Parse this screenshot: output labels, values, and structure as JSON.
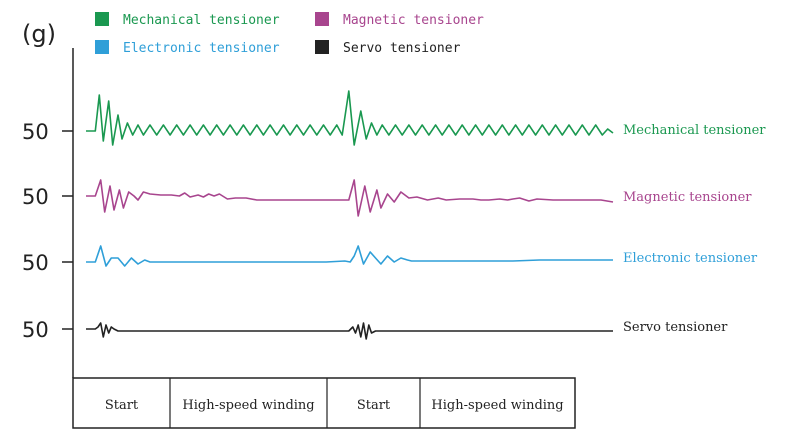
{
  "chart_data": {
    "type": "line",
    "title": "",
    "y_unit_label": "(g)",
    "x_phases": [
      "Start",
      "High-speed winding",
      "Start",
      "High-speed winding"
    ],
    "legend": [
      {
        "label": "Mechanical tensioner",
        "color": "#1a9850"
      },
      {
        "label": "Magnetic tensioner",
        "color": "#a8458e"
      },
      {
        "label": "Electronic tensioner",
        "color": "#2f9fd8"
      },
      {
        "label": "Servo tensioner",
        "color": "#222222"
      }
    ],
    "series": [
      {
        "name": "Mechanical tensioner",
        "color": "#1a9850",
        "baseline": 50,
        "points": [
          [
            0,
            50
          ],
          [
            0.35,
            50
          ],
          [
            0.5,
            68
          ],
          [
            0.65,
            45
          ],
          [
            0.85,
            65
          ],
          [
            1,
            43
          ],
          [
            1.2,
            58
          ],
          [
            1.35,
            46
          ],
          [
            1.55,
            54
          ],
          [
            1.75,
            48
          ],
          [
            1.95,
            53
          ],
          [
            2.15,
            48
          ],
          [
            2.4,
            53
          ],
          [
            2.65,
            48
          ],
          [
            2.9,
            53
          ],
          [
            3.15,
            48
          ],
          [
            3.4,
            53
          ],
          [
            3.65,
            48
          ],
          [
            3.9,
            53
          ],
          [
            4.15,
            48
          ],
          [
            4.4,
            53
          ],
          [
            4.65,
            48
          ],
          [
            4.9,
            53
          ],
          [
            5.15,
            48
          ],
          [
            5.4,
            53
          ],
          [
            5.65,
            48
          ],
          [
            5.9,
            53
          ],
          [
            6.15,
            48
          ],
          [
            6.4,
            53
          ],
          [
            6.65,
            48
          ],
          [
            6.9,
            53
          ],
          [
            7.15,
            48
          ],
          [
            7.4,
            53
          ],
          [
            7.65,
            48
          ],
          [
            7.9,
            53
          ],
          [
            8.15,
            48
          ],
          [
            8.4,
            53
          ],
          [
            8.65,
            48
          ],
          [
            8.9,
            53
          ],
          [
            9.15,
            48
          ],
          [
            9.4,
            53
          ],
          [
            9.6,
            48
          ],
          [
            9.85,
            70
          ],
          [
            10.05,
            43
          ],
          [
            10.3,
            60
          ],
          [
            10.5,
            46
          ],
          [
            10.7,
            54
          ],
          [
            10.9,
            48
          ],
          [
            11.1,
            53
          ],
          [
            11.35,
            48
          ],
          [
            11.6,
            53
          ],
          [
            11.85,
            48
          ],
          [
            12.1,
            53
          ],
          [
            12.35,
            48
          ],
          [
            12.6,
            53
          ],
          [
            12.85,
            48
          ],
          [
            13.1,
            53
          ],
          [
            13.35,
            48
          ],
          [
            13.6,
            53
          ],
          [
            13.85,
            48
          ],
          [
            14.1,
            53
          ],
          [
            14.35,
            48
          ],
          [
            14.6,
            53
          ],
          [
            14.85,
            48
          ],
          [
            15.1,
            53
          ],
          [
            15.35,
            48
          ],
          [
            15.6,
            53
          ],
          [
            15.85,
            48
          ],
          [
            16.1,
            53
          ],
          [
            16.35,
            48
          ],
          [
            16.6,
            53
          ],
          [
            16.85,
            48
          ],
          [
            17.1,
            53
          ],
          [
            17.35,
            48
          ],
          [
            17.6,
            53
          ],
          [
            17.85,
            48
          ],
          [
            18.1,
            53
          ],
          [
            18.35,
            48
          ],
          [
            18.6,
            53
          ],
          [
            18.85,
            48
          ],
          [
            19.1,
            53
          ],
          [
            19.35,
            48
          ],
          [
            19.55,
            51
          ],
          [
            19.75,
            49
          ]
        ]
      },
      {
        "name": "Magnetic tensioner",
        "color": "#a8458e",
        "baseline": 50,
        "points": [
          [
            0,
            50
          ],
          [
            0.35,
            50
          ],
          [
            0.55,
            58
          ],
          [
            0.7,
            42
          ],
          [
            0.9,
            55
          ],
          [
            1.05,
            43
          ],
          [
            1.25,
            53
          ],
          [
            1.4,
            44
          ],
          [
            1.6,
            52
          ],
          [
            1.8,
            50
          ],
          [
            1.95,
            48
          ],
          [
            2.15,
            52
          ],
          [
            2.4,
            51
          ],
          [
            2.8,
            50.5
          ],
          [
            3.2,
            50.5
          ],
          [
            3.5,
            50
          ],
          [
            3.7,
            51.5
          ],
          [
            3.9,
            49.5
          ],
          [
            4.2,
            50.5
          ],
          [
            4.4,
            49.5
          ],
          [
            4.6,
            51
          ],
          [
            4.8,
            50
          ],
          [
            5,
            51
          ],
          [
            5.3,
            48.5
          ],
          [
            5.6,
            49
          ],
          [
            6,
            49
          ],
          [
            6.4,
            48
          ],
          [
            7,
            48
          ],
          [
            8,
            48
          ],
          [
            9.5,
            48
          ],
          [
            9.85,
            48
          ],
          [
            10.05,
            58
          ],
          [
            10.2,
            40
          ],
          [
            10.45,
            55
          ],
          [
            10.65,
            42
          ],
          [
            10.9,
            53
          ],
          [
            11.05,
            44
          ],
          [
            11.3,
            51
          ],
          [
            11.55,
            47
          ],
          [
            11.8,
            52
          ],
          [
            12.1,
            49
          ],
          [
            12.4,
            49.5
          ],
          [
            12.8,
            48
          ],
          [
            13.2,
            49
          ],
          [
            13.5,
            48
          ],
          [
            14,
            48.5
          ],
          [
            14.5,
            48.5
          ],
          [
            14.8,
            48
          ],
          [
            15.1,
            48
          ],
          [
            15.5,
            48.5
          ],
          [
            15.8,
            48
          ],
          [
            16,
            48.5
          ],
          [
            16.25,
            49
          ],
          [
            16.6,
            47.5
          ],
          [
            16.9,
            48.5
          ],
          [
            17.5,
            48
          ],
          [
            18.5,
            48
          ],
          [
            19.3,
            48
          ],
          [
            19.75,
            47
          ]
        ]
      },
      {
        "name": "Electronic tensioner",
        "color": "#2f9fd8",
        "baseline": 50,
        "points": [
          [
            0,
            50
          ],
          [
            0.35,
            50
          ],
          [
            0.55,
            58
          ],
          [
            0.75,
            48
          ],
          [
            0.95,
            52
          ],
          [
            1.2,
            52
          ],
          [
            1.45,
            48
          ],
          [
            1.7,
            52
          ],
          [
            1.95,
            49
          ],
          [
            2.2,
            51
          ],
          [
            2.4,
            50
          ],
          [
            2.55,
            50
          ],
          [
            3,
            50
          ],
          [
            4,
            50
          ],
          [
            5,
            50
          ],
          [
            6,
            50
          ],
          [
            7,
            50
          ],
          [
            8,
            50
          ],
          [
            9,
            50
          ],
          [
            9.7,
            50.5
          ],
          [
            9.9,
            50
          ],
          [
            10.05,
            53
          ],
          [
            10.2,
            58
          ],
          [
            10.4,
            49
          ],
          [
            10.65,
            55
          ],
          [
            10.85,
            52
          ],
          [
            11.05,
            49
          ],
          [
            11.3,
            53
          ],
          [
            11.55,
            50
          ],
          [
            11.8,
            52
          ],
          [
            12.05,
            51
          ],
          [
            12.2,
            50.5
          ],
          [
            13,
            50.5
          ],
          [
            14,
            50.5
          ],
          [
            15,
            50.5
          ],
          [
            16,
            50.5
          ],
          [
            17,
            51
          ],
          [
            18,
            51
          ],
          [
            19,
            51
          ],
          [
            19.75,
            51
          ]
        ]
      },
      {
        "name": "Servo tensioner",
        "color": "#222222",
        "baseline": 50,
        "points": [
          [
            0,
            50
          ],
          [
            0.35,
            50
          ],
          [
            0.45,
            51
          ],
          [
            0.55,
            53
          ],
          [
            0.65,
            46
          ],
          [
            0.75,
            52
          ],
          [
            0.85,
            48
          ],
          [
            0.95,
            51
          ],
          [
            1.05,
            50
          ],
          [
            1.2,
            49
          ],
          [
            1.5,
            49
          ],
          [
            2,
            49
          ],
          [
            3,
            49
          ],
          [
            4,
            49
          ],
          [
            5,
            49
          ],
          [
            6,
            49
          ],
          [
            7,
            49
          ],
          [
            8,
            49
          ],
          [
            9,
            49
          ],
          [
            9.85,
            49
          ],
          [
            10,
            51
          ],
          [
            10.1,
            48
          ],
          [
            10.2,
            52
          ],
          [
            10.3,
            46
          ],
          [
            10.4,
            53
          ],
          [
            10.5,
            45
          ],
          [
            10.6,
            52
          ],
          [
            10.7,
            48
          ],
          [
            10.85,
            49
          ],
          [
            11,
            49
          ],
          [
            12,
            49
          ],
          [
            13,
            49
          ],
          [
            14,
            49
          ],
          [
            15,
            49
          ],
          [
            16,
            49
          ],
          [
            17,
            49
          ],
          [
            18,
            49
          ],
          [
            19,
            49
          ],
          [
            19.75,
            49
          ]
        ]
      }
    ],
    "y_ticks": [
      "50",
      "50",
      "50",
      "50"
    ],
    "grid": false,
    "legend_position": "top-left"
  }
}
